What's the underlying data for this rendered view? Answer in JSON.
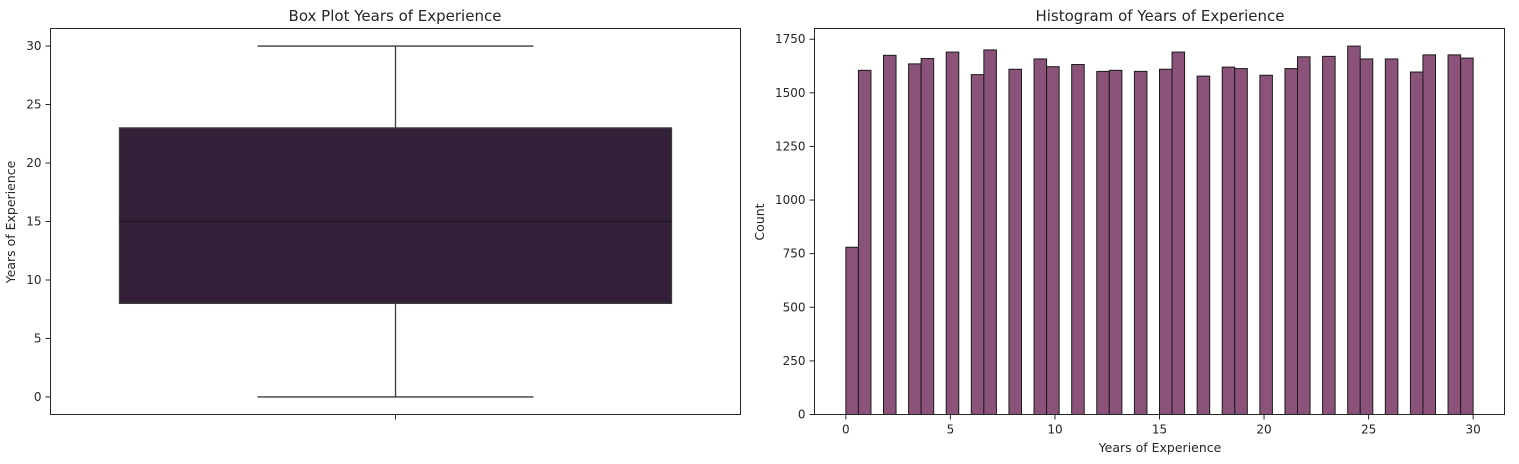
{
  "chart_data": [
    {
      "type": "box",
      "title": "Box Plot Years of Experience",
      "ylabel": "Years of Experience",
      "ylim": [
        -1.5,
        31.5
      ],
      "yticks": [
        0,
        5,
        10,
        15,
        20,
        25,
        30
      ],
      "stats": {
        "min": 0,
        "q1": 8,
        "median": 15,
        "q3": 23,
        "max": 30
      },
      "box_color": "#331f38"
    },
    {
      "type": "bar",
      "title": "Histogram of Years of Experience",
      "xlabel": "Years of Experience",
      "ylabel": "Count",
      "xlim": [
        -1.5,
        31.5
      ],
      "ylim": [
        0,
        1800
      ],
      "xticks": [
        0,
        5,
        10,
        15,
        20,
        25,
        30
      ],
      "yticks": [
        0,
        250,
        500,
        750,
        1000,
        1250,
        1500,
        1750
      ],
      "bar_color": "#8c537a",
      "x": [
        0,
        1,
        2,
        3,
        4,
        5,
        6,
        7,
        8,
        9,
        10,
        11,
        12,
        13,
        14,
        15,
        16,
        17,
        18,
        19,
        20,
        21,
        22,
        23,
        24,
        25,
        26,
        27,
        28,
        29,
        30
      ],
      "values": [
        780,
        1605,
        1675,
        1635,
        1660,
        1690,
        1585,
        1700,
        1610,
        1658,
        1622,
        1632,
        1600,
        1605,
        1600,
        1610,
        1690,
        1578,
        1620,
        1613,
        1582,
        1613,
        1668,
        1670,
        1718,
        1658,
        1658,
        1597,
        1677,
        1677,
        1662
      ]
    }
  ]
}
